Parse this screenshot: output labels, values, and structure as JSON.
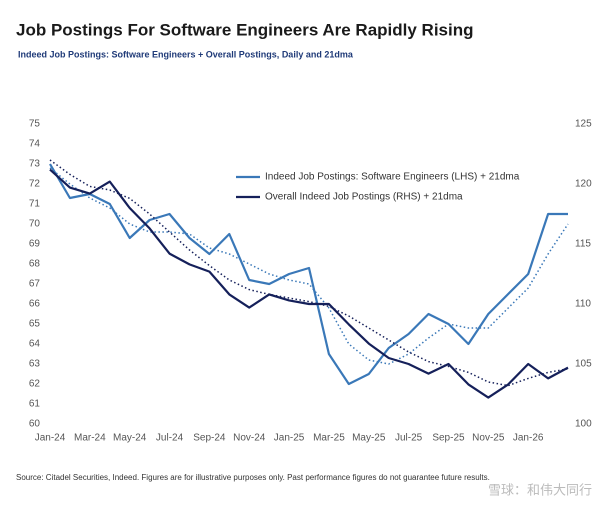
{
  "chart_data": {
    "type": "line",
    "title": "Job Postings For Software Engineers Are Rapidly Rising",
    "subtitle": "Indeed Job Postings: Software Engineers + Overall Postings, Daily and 21dma",
    "source": "Source: Citadel Securities, Indeed. Figures are for illustrative purposes only. Past performance figures do not guarantee future results.",
    "watermark": "雪球：和伟大同行",
    "categories": [
      "Jan-24",
      null,
      "Mar-24",
      null,
      "May-24",
      null,
      "Jul-24",
      null,
      "Sep-24",
      null,
      "Nov-24",
      null,
      "Jan-25",
      null,
      "Mar-25",
      null,
      "May-25",
      null,
      "Jul-25",
      null,
      "Sep-25",
      null,
      "Nov-25",
      null,
      "Jan-26",
      null,
      null
    ],
    "series": [
      {
        "name": "Indeed Job Postings: Software Engineers (LHS) + 21dma",
        "color": "#3a78b8",
        "values": [
          73.0,
          71.3,
          71.5,
          71.0,
          69.3,
          70.2,
          70.5,
          69.3,
          68.5,
          69.5,
          67.2,
          67.0,
          67.5,
          67.8,
          63.5,
          62.0,
          62.5,
          63.8,
          64.5,
          65.5,
          65.0,
          64.0,
          65.5,
          66.5,
          67.5,
          70.5,
          70.5
        ],
        "ma_values": [
          72.8,
          72.0,
          71.3,
          70.8,
          70.0,
          69.6,
          69.6,
          69.5,
          68.8,
          68.5,
          68.0,
          67.5,
          67.2,
          67.0,
          65.8,
          64.0,
          63.2,
          63.0,
          63.5,
          64.3,
          65.0,
          64.8,
          64.8,
          65.8,
          66.8,
          68.5,
          70.0
        ]
      },
      {
        "name": "Overall Indeed Job Postings (RHS) + 21dma",
        "color": "#15205a",
        "axis": "y2",
        "values": [
          121.2,
          119.7,
          119.2,
          120.2,
          118.0,
          116.3,
          114.2,
          113.3,
          112.7,
          110.8,
          109.7,
          110.8,
          110.3,
          110.0,
          110.0,
          108.3,
          106.7,
          105.5,
          105.0,
          104.2,
          105.0,
          103.3,
          102.2,
          103.3,
          105.0,
          103.8,
          104.7
        ],
        "ma_values": [
          122.0,
          120.8,
          119.8,
          119.5,
          118.8,
          117.5,
          116.0,
          114.5,
          113.2,
          112.0,
          111.2,
          110.8,
          110.5,
          110.2,
          109.8,
          109.0,
          108.0,
          107.0,
          106.0,
          105.2,
          104.8,
          104.3,
          103.5,
          103.2,
          103.8,
          104.3,
          104.6
        ]
      }
    ],
    "ylim": [
      60,
      75
    ],
    "yticks": [
      60,
      61,
      62,
      63,
      64,
      65,
      66,
      67,
      68,
      69,
      70,
      71,
      72,
      73,
      74,
      75
    ],
    "y2lim": [
      100,
      125
    ],
    "y2ticks": [
      100,
      105,
      110,
      115,
      120,
      125
    ],
    "grid": false,
    "legend": "upper center"
  }
}
